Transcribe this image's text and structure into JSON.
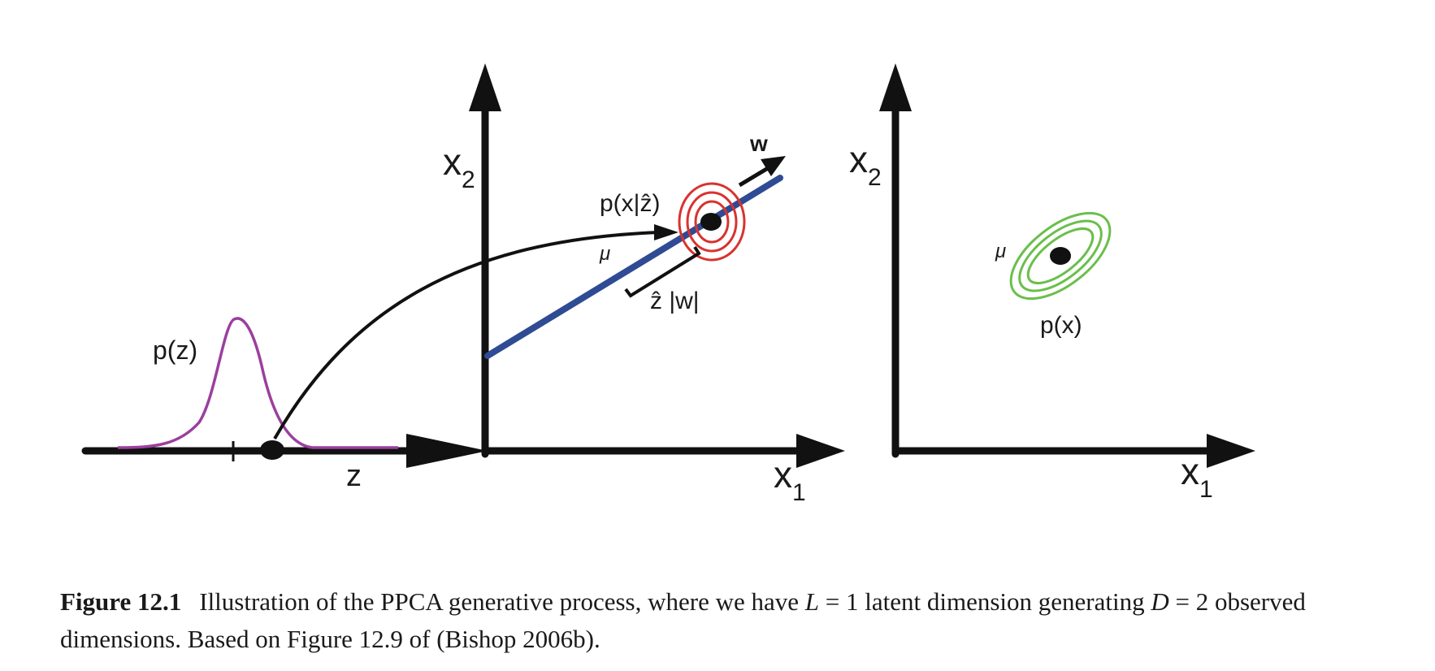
{
  "panels": {
    "latent": {
      "pz_label": "p(z)",
      "axis_label": "z"
    },
    "conditional": {
      "x2_base": "x",
      "x2_sub": "2",
      "x1_base": "x",
      "x1_sub": "1",
      "w_label": "w",
      "pxz_label": "p(x|ẑ)",
      "mu_label": "μ",
      "zw_label": "ẑ |w|"
    },
    "marginal": {
      "x2_base": "x",
      "x2_sub": "2",
      "x1_base": "x",
      "x1_sub": "1",
      "mu_label": "μ",
      "px_label": "p(x)"
    }
  },
  "colors": {
    "axis": "#111111",
    "latent_density": "#9b3f9e",
    "principal_line": "#2e4b94",
    "conditional_contours": "#d8332f",
    "marginal_contours": "#6abf4b"
  },
  "caption": {
    "label": "Figure 12.1",
    "text_1": "Illustration of the PPCA generative process, where we have ",
    "math_L": "L",
    "text_2": " = 1 latent dimension generating ",
    "math_D": "D",
    "text_3": " = 2 observed dimensions. Based on Figure 12.9 of (Bishop 2006b)."
  }
}
